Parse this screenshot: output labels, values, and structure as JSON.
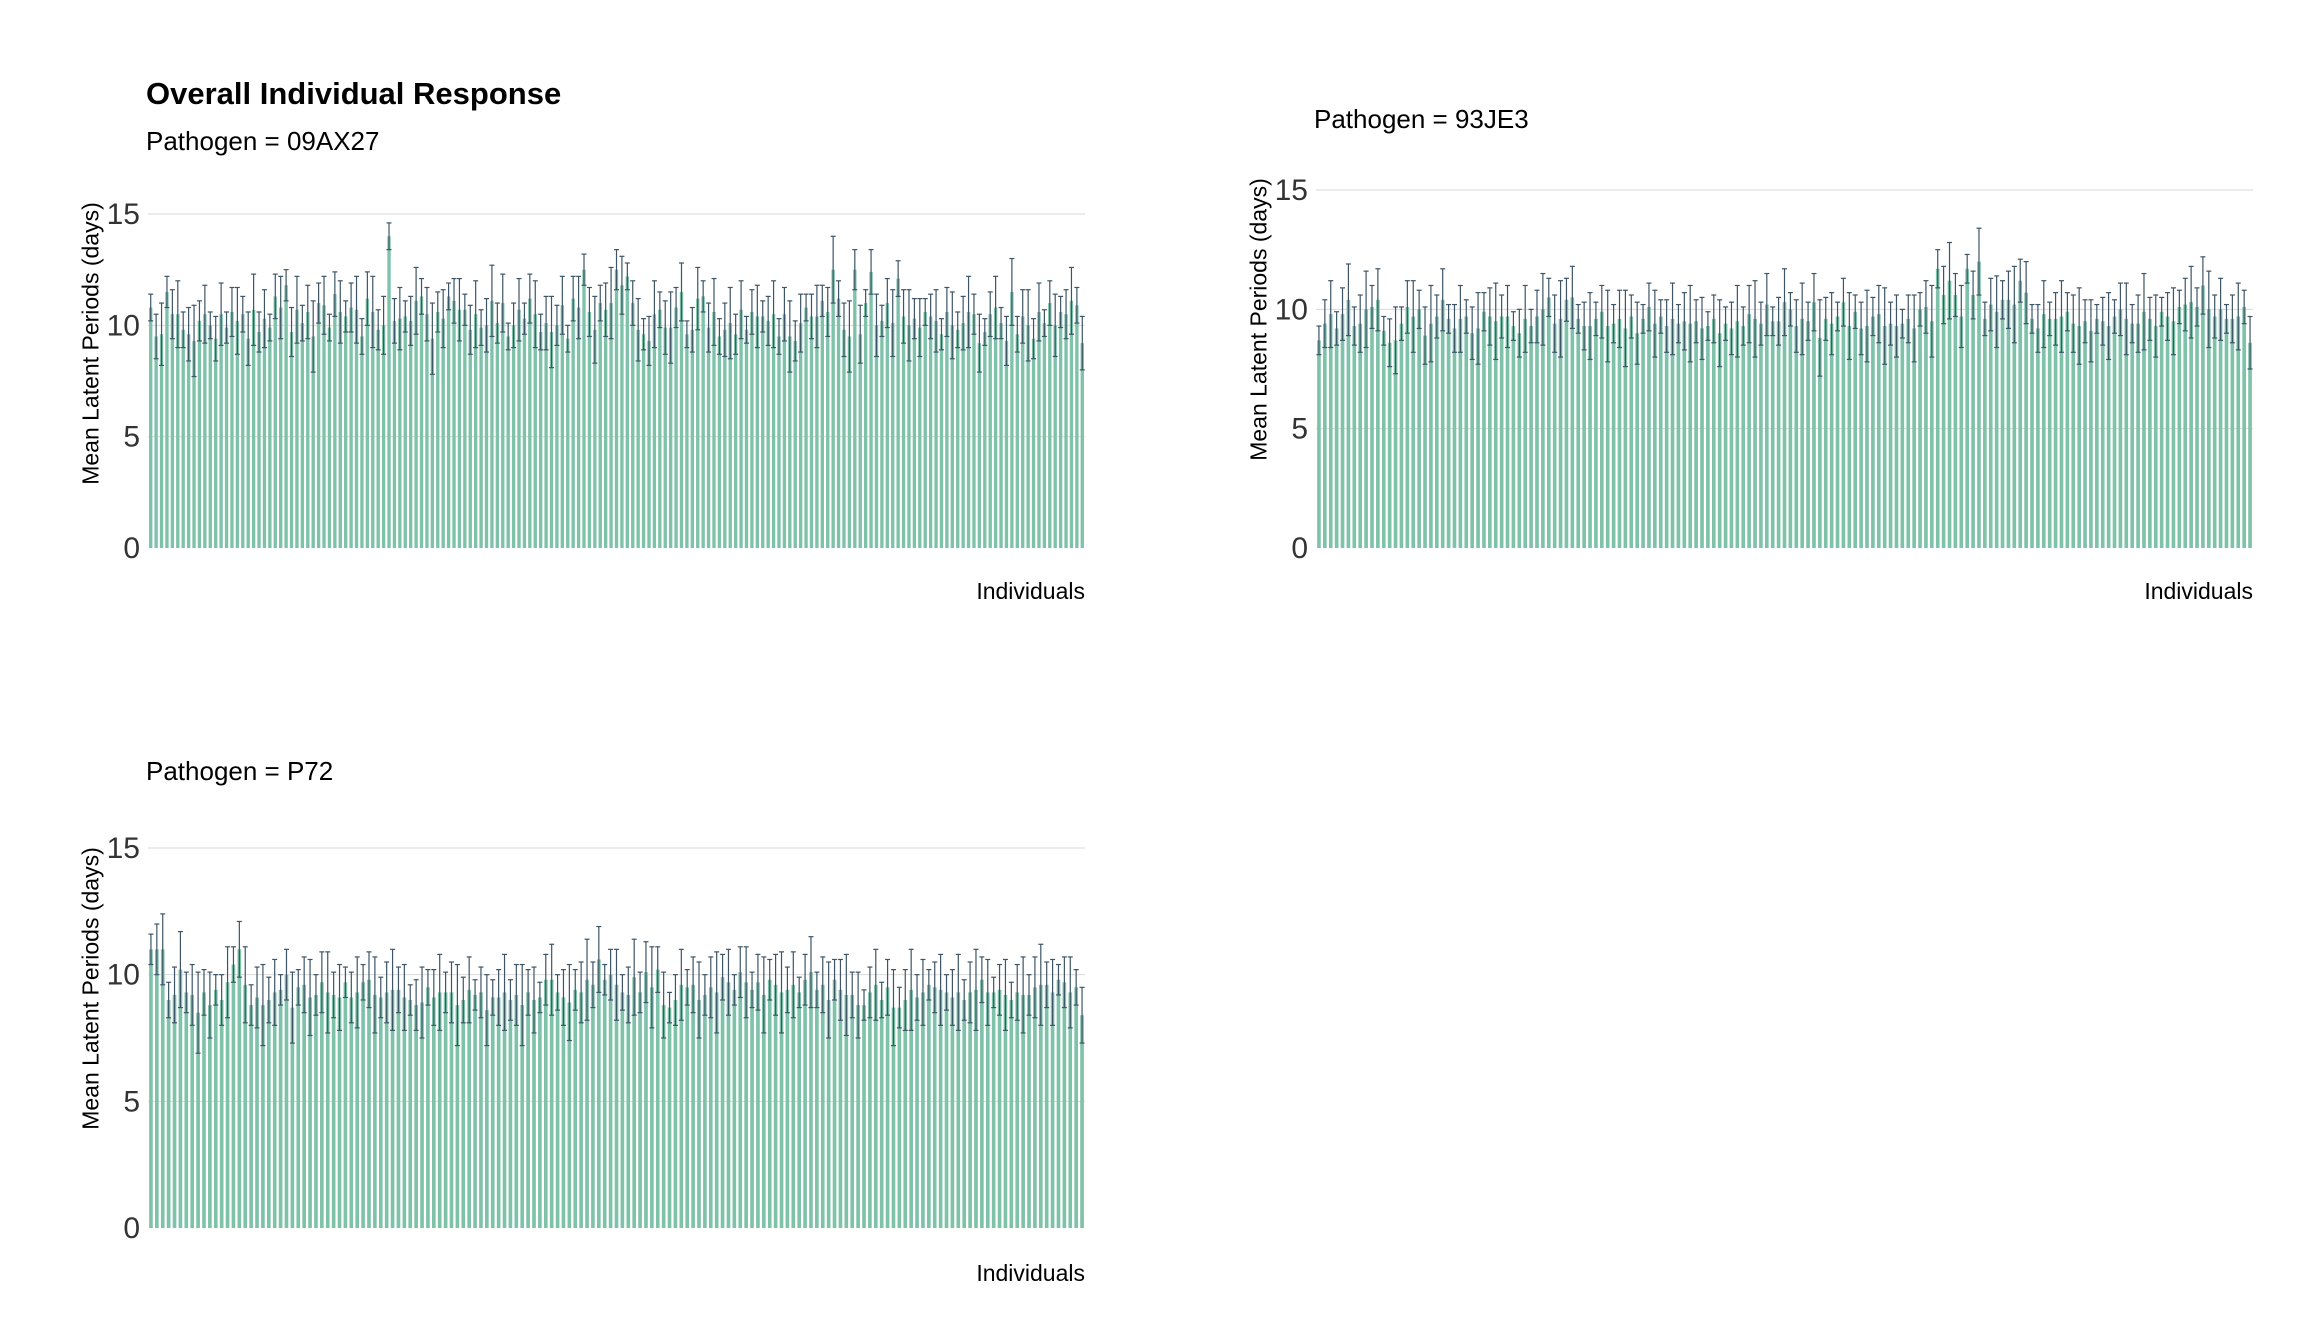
{
  "page": {
    "title": "Overall Individual Response"
  },
  "style": {
    "bar_color": "#7fc2aa",
    "error_color": "#3d5566",
    "grid_color": "#d9d9d9"
  },
  "chart_data": [
    {
      "type": "bar",
      "title": "Pathogen = 09AX27",
      "xlabel": "Individuals",
      "ylabel": "Mean Latent Periods (days)",
      "ylim": [
        0,
        15
      ],
      "yticks": [
        0,
        5,
        10,
        15
      ],
      "grid": "horizontal",
      "series": [
        {
          "values": [
            10.8,
            9.5,
            9.6,
            11.5,
            10.5,
            10.5,
            9.8,
            9.6,
            9.3,
            10.2,
            10.5,
            10.0,
            9.4,
            10.5,
            9.9,
            10.6,
            10.2,
            10.5,
            9.4,
            10.7,
            9.7,
            10.3,
            9.9,
            11.3,
            10.8,
            11.8,
            9.7,
            10.7,
            10.1,
            10.6,
            9.5,
            11.0,
            10.9,
            9.9,
            11.4,
            10.6,
            10.4,
            10.8,
            10.7,
            9.5,
            11.2,
            10.6,
            9.8,
            10.0,
            14.0,
            10.2,
            10.3,
            10.4,
            10.2,
            11.1,
            11.3,
            10.5,
            9.4,
            10.6,
            10.3,
            11.3,
            11.1,
            10.7,
            10.7,
            9.8,
            10.5,
            9.9,
            10.0,
            11.1,
            10.1,
            11.0,
            9.5,
            10.0,
            10.7,
            10.3,
            11.2,
            10.5,
            9.7,
            10.1,
            9.7,
            10.0,
            10.9,
            9.4,
            11.2,
            10.8,
            12.5,
            10.6,
            9.8,
            11.0,
            10.7,
            11.0,
            12.5,
            11.8,
            12.2,
            11.0,
            9.8,
            9.6,
            9.3,
            10.5,
            10.7,
            9.9,
            9.9,
            10.8,
            11.5,
            9.6,
            9.8,
            11.2,
            11.3,
            9.9,
            10.6,
            9.5,
            9.8,
            10.1,
            9.6,
            10.7,
            9.8,
            10.6,
            10.4,
            10.4,
            10.2,
            10.5,
            9.5,
            10.5,
            9.5,
            9.3,
            10.1,
            10.8,
            10.4,
            10.4,
            11.1,
            10.6,
            12.5,
            11.2,
            9.8,
            9.5,
            12.5,
            9.6,
            11.0,
            12.4,
            10.0,
            10.2,
            11.0,
            10.1,
            12.1,
            10.4,
            10.0,
            10.3,
            9.9,
            10.6,
            10.4,
            10.2,
            9.6,
            10.6,
            10.0,
            9.8,
            10.1,
            10.6,
            10.5,
            9.2,
            9.7,
            10.5,
            10.8,
            10.1,
            9.3,
            11.5,
            9.6,
            10.4,
            10.0,
            9.4,
            10.6,
            10.1,
            11.0,
            10.0,
            10.6,
            10.5,
            11.1,
            10.9,
            9.2
          ]
        }
      ]
    },
    {
      "type": "bar",
      "title": "Pathogen = 93JE3",
      "xlabel": "Individuals",
      "ylabel": "Mean Latent Periods (days)",
      "ylim": [
        0,
        15
      ],
      "yticks": [
        0,
        5,
        10,
        15
      ],
      "grid": "horizontal",
      "series": [
        {
          "values": [
            8.7,
            9.4,
            9.8,
            9.2,
            9.8,
            10.4,
            9.3,
            9.4,
            10.0,
            10.1,
            10.4,
            9.1,
            8.6,
            8.7,
            9.4,
            10.1,
            9.7,
            10.0,
            8.9,
            9.4,
            9.7,
            10.4,
            9.6,
            9.2,
            9.6,
            9.7,
            9.0,
            9.2,
            9.9,
            9.7,
            9.5,
            9.7,
            9.7,
            9.3,
            9.0,
            9.6,
            9.3,
            9.7,
            10.0,
            10.5,
            9.4,
            9.6,
            10.4,
            10.5,
            9.6,
            9.3,
            9.3,
            9.6,
            9.9,
            9.3,
            9.4,
            9.6,
            9.2,
            9.7,
            9.0,
            9.6,
            10.1,
            9.4,
            9.7,
            9.3,
            9.6,
            9.4,
            9.5,
            9.4,
            9.5,
            9.2,
            9.3,
            9.6,
            9.0,
            9.4,
            9.2,
            9.5,
            9.3,
            9.8,
            9.6,
            9.4,
            10.2,
            9.5,
            9.5,
            10.3,
            10.0,
            9.3,
            9.6,
            9.5,
            10.3,
            8.8,
            9.6,
            9.4,
            9.7,
            10.3,
            9.3,
            9.9,
            9.2,
            9.3,
            9.7,
            9.8,
            9.3,
            9.4,
            9.3,
            9.4,
            9.6,
            9.2,
            10.0,
            10.1,
            9.5,
            11.7,
            10.6,
            11.2,
            10.6,
            9.7,
            11.7,
            10.6,
            12.0,
            9.6,
            10.2,
            9.9,
            10.4,
            10.4,
            10.2,
            11.2,
            10.7,
            9.6,
            9.2,
            9.8,
            9.6,
            9.6,
            9.7,
            9.9,
            9.4,
            9.3,
            9.5,
            9.1,
            9.6,
            9.5,
            9.3,
            9.7,
            10.0,
            9.6,
            9.4,
            9.4,
            9.9,
            9.6,
            9.3,
            9.9,
            9.7,
            9.5,
            10.1,
            10.2,
            10.3,
            10.1,
            11.0,
            10.0,
            9.7,
            10.0,
            9.6,
            9.6,
            9.7,
            10.1,
            8.6
          ]
        }
      ]
    },
    {
      "type": "bar",
      "title": "Pathogen = P72",
      "xlabel": "Individuals",
      "ylabel": "Mean Latent Periods (days)",
      "ylim": [
        0,
        15
      ],
      "yticks": [
        0,
        5,
        10,
        15
      ],
      "grid": "horizontal",
      "series": [
        {
          "values": [
            11.0,
            11.0,
            11.0,
            9.0,
            9.2,
            10.2,
            9.3,
            9.2,
            8.5,
            9.3,
            8.8,
            9.4,
            9.0,
            9.7,
            10.4,
            11.0,
            9.6,
            8.8,
            9.1,
            8.8,
            9.0,
            9.3,
            9.4,
            10.0,
            8.7,
            9.5,
            9.6,
            9.1,
            9.2,
            9.7,
            9.3,
            9.2,
            9.1,
            9.7,
            9.1,
            9.3,
            9.7,
            9.8,
            9.2,
            9.1,
            9.3,
            9.4,
            9.4,
            9.1,
            9.0,
            8.8,
            8.9,
            9.5,
            9.1,
            9.3,
            9.3,
            9.3,
            8.8,
            9.0,
            9.4,
            9.2,
            9.3,
            8.6,
            9.1,
            9.1,
            9.3,
            9.0,
            9.2,
            8.8,
            9.3,
            9.0,
            9.1,
            9.8,
            9.8,
            9.3,
            9.1,
            8.9,
            9.4,
            9.3,
            9.8,
            9.6,
            10.6,
            9.8,
            10.0,
            9.6,
            9.3,
            9.2,
            9.9,
            9.3,
            10.1,
            9.5,
            10.2,
            8.8,
            8.7,
            9.0,
            9.6,
            9.5,
            9.6,
            9.0,
            9.2,
            9.5,
            9.3,
            9.9,
            9.7,
            9.4,
            10.1,
            9.7,
            9.4,
            9.7,
            9.2,
            9.8,
            9.6,
            9.3,
            9.4,
            9.6,
            9.3,
            9.8,
            10.1,
            9.4,
            9.6,
            9.0,
            9.8,
            9.4,
            9.2,
            9.2,
            8.8,
            8.8,
            9.3,
            9.6,
            9.0,
            9.5,
            8.7,
            8.7,
            9.0,
            9.4,
            9.1,
            9.3,
            9.6,
            9.5,
            9.4,
            9.3,
            9.1,
            9.3,
            9.0,
            9.3,
            9.4,
            9.8,
            9.3,
            9.3,
            9.4,
            9.2,
            9.0,
            9.3,
            9.2,
            9.2,
            9.5,
            9.6,
            9.6,
            9.3,
            9.8,
            9.7,
            9.3,
            9.5,
            8.4
          ]
        }
      ]
    }
  ]
}
